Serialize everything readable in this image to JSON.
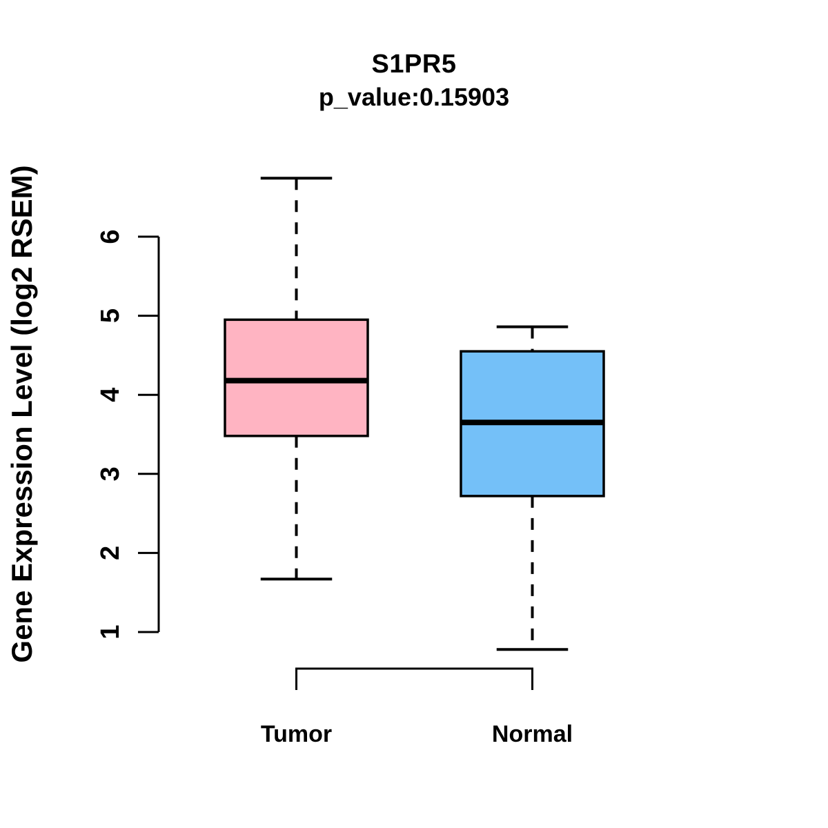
{
  "chart_data": {
    "type": "boxplot",
    "title": "S1PR5",
    "subtitle": "p_value:0.15903",
    "ylabel": "Gene Expression Level (log2 RSEM)",
    "xlabel": "",
    "categories": [
      "Tumor",
      "Normal"
    ],
    "yticks": [
      1,
      2,
      3,
      4,
      5,
      6
    ],
    "ylim": [
      0.6,
      6.9
    ],
    "grid": false,
    "legend": "none",
    "axis_color": "#000000",
    "text_color": "#000000",
    "series": [
      {
        "name": "Tumor",
        "color": "#FFB4C2",
        "whisker_low": 1.67,
        "q1": 3.48,
        "median": 4.18,
        "q3": 4.95,
        "whisker_high": 6.74
      },
      {
        "name": "Normal",
        "color": "#74C0F8",
        "whisker_low": 0.78,
        "q1": 2.72,
        "median": 3.65,
        "q3": 4.55,
        "whisker_high": 4.86
      }
    ]
  }
}
